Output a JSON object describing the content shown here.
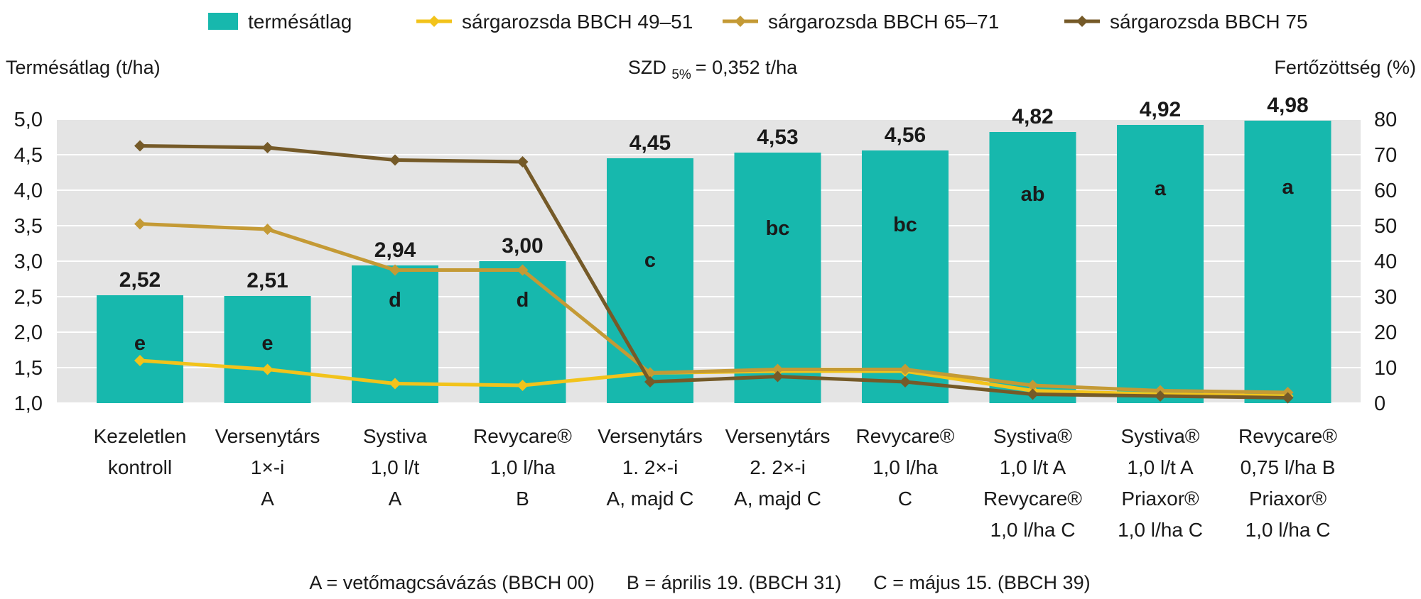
{
  "chart_data": {
    "type": "bar",
    "title": "",
    "ylabel": "Termésátlag (t/ha)",
    "y2label": "Fertőzöttség (%)",
    "ylim": [
      1.0,
      5.0
    ],
    "y2lim": [
      0,
      80
    ],
    "yticks": [
      "5,0",
      "4,5",
      "4,0",
      "3,5",
      "3,0",
      "2,5",
      "2,0",
      "1,5",
      "1,0"
    ],
    "y2ticks": [
      "80",
      "70",
      "60",
      "50",
      "40",
      "30",
      "20",
      "10",
      "0"
    ],
    "grid": true,
    "annotation": {
      "prefix": "SZD",
      "subscript": "5%",
      "suffix": "= 0,352 t/ha"
    },
    "legend": {
      "position": "top",
      "items": [
        {
          "label": "termésátlag",
          "color": "#17b8ad",
          "kind": "bar"
        },
        {
          "label": "sárgarozsda BBCH 49–51",
          "color": "#f2c31b",
          "kind": "line"
        },
        {
          "label": "sárgarozsda BBCH 65–71",
          "color": "#c49a35",
          "kind": "line"
        },
        {
          "label": "sárgarozsda BBCH 75",
          "color": "#755a28",
          "kind": "line"
        }
      ]
    },
    "categories": [
      [
        "Kezeletlen",
        "kontroll"
      ],
      [
        "Versenytárs",
        "1×-i",
        "A"
      ],
      [
        "Systiva",
        "1,0 l/t",
        "A"
      ],
      [
        "Revycare®",
        "1,0 l/ha",
        "B"
      ],
      [
        "Versenytárs",
        "1. 2×-i",
        "A, majd C"
      ],
      [
        "Versenytárs",
        "2. 2×-i",
        "A, majd C"
      ],
      [
        "Revycare®",
        "1,0 l/ha",
        "C"
      ],
      [
        "Systiva®",
        "1,0 l/t A",
        "Revycare®",
        "1,0 l/ha C"
      ],
      [
        "Systiva®",
        "1,0 l/t A",
        "Priaxor®",
        "1,0 l/ha C"
      ],
      [
        "Revycare®",
        "0,75 l/ha B",
        "Priaxor®",
        "1,0 l/ha C"
      ]
    ],
    "bars": {
      "name": "termésátlag",
      "values": [
        2.52,
        2.51,
        2.94,
        3.0,
        4.45,
        4.53,
        4.56,
        4.82,
        4.92,
        4.98
      ],
      "value_labels": [
        "2,52",
        "2,51",
        "2,94",
        "3,00",
        "4,45",
        "4,53",
        "4,56",
        "4,82",
        "4,92",
        "4,98"
      ],
      "letters": [
        "e",
        "e",
        "d",
        "d",
        "c",
        "bc",
        "bc",
        "ab",
        "a",
        "a"
      ],
      "letter_values": [
        1.85,
        1.85,
        2.46,
        2.46,
        3.02,
        3.47,
        3.52,
        3.95,
        4.03,
        4.05
      ],
      "color": "#17b8ad"
    },
    "series": [
      {
        "name": "sárgarozsda BBCH 49–51",
        "color": "#f2c31b",
        "values": [
          12,
          9.5,
          5.5,
          5,
          8.5,
          9,
          9,
          3.5,
          2.5,
          2
        ]
      },
      {
        "name": "sárgarozsda BBCH 65–71",
        "color": "#c49a35",
        "values": [
          50.5,
          49,
          37.5,
          37.5,
          8.5,
          9.5,
          9.5,
          5,
          3.5,
          3
        ]
      },
      {
        "name": "sárgarozsda BBCH 75",
        "color": "#755a28",
        "values": [
          72.5,
          72,
          68.5,
          68,
          6,
          7.5,
          6,
          2.5,
          2,
          1.5
        ]
      }
    ],
    "footnote": "A = vetőmagcsávázás (BBCH 00)      B = április 19. (BBCH 31)      C = május 15. (BBCH 39)"
  }
}
